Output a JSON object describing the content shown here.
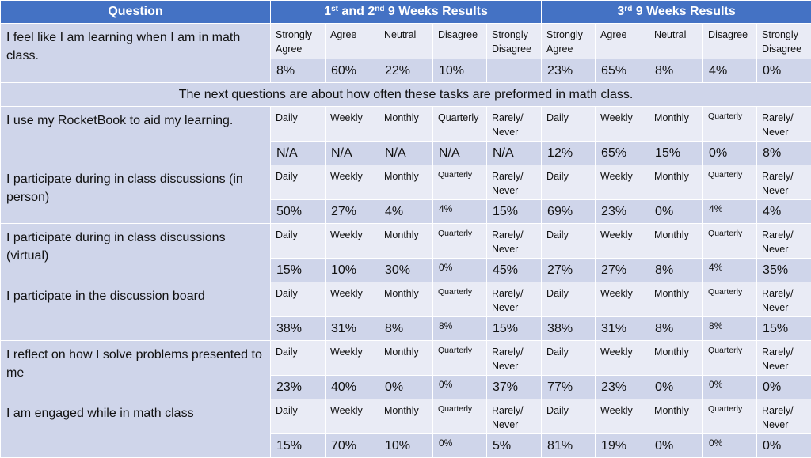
{
  "header": {
    "question": "Question",
    "group1": {
      "part1": "1",
      "sup1": "st",
      "part2": " and 2",
      "sup2": "nd",
      "part3": " 9 Weeks Results"
    },
    "group2": {
      "part1": "3",
      "sup1": "rd",
      "part3": " 9 Weeks Results"
    }
  },
  "first_question": {
    "text": "I feel like I am learning when I am in math class.",
    "labels": [
      "Strongly Agree",
      "Agree",
      "Neutral",
      "Disagree",
      "Strongly Disagree",
      "Strongly Agree",
      "Agree",
      "Neutral",
      "Disagree",
      "Strongly Disagree"
    ],
    "values": [
      "8%",
      "60%",
      "22%",
      "10%",
      "",
      "23%",
      "65%",
      "8%",
      "4%",
      "0%"
    ]
  },
  "section_note": "The next questions are about how often these tasks are preformed in math class.",
  "freq_labels": [
    "Daily",
    "Weekly",
    "Monthly",
    "Quarterly",
    "Rarely/ Never",
    "Daily",
    "Weekly",
    "Monthly",
    "Quarterly",
    "Rarely/ Never"
  ],
  "rows": [
    {
      "question": "I use my RocketBook to aid my learning.",
      "values": [
        "N/A",
        "N/A",
        "N/A",
        "N/A",
        "N/A",
        "12%",
        "65%",
        "15%",
        "0%",
        "8%"
      ]
    },
    {
      "question": "I participate during in class discussions (in person)",
      "values": [
        "50%",
        "27%",
        "4%",
        "4%",
        "15%",
        "69%",
        "23%",
        "0%",
        "4%",
        "4%"
      ]
    },
    {
      "question": "I participate during in class discussions (virtual)",
      "values": [
        "15%",
        "10%",
        "30%",
        "0%",
        "45%",
        "27%",
        "27%",
        "8%",
        "4%",
        "35%"
      ]
    },
    {
      "question": "I participate in the discussion board",
      "values": [
        "38%",
        "31%",
        "8%",
        "8%",
        "15%",
        "38%",
        "31%",
        "8%",
        "8%",
        "15%"
      ]
    },
    {
      "question": "I reflect on how I solve problems presented to me",
      "values": [
        "23%",
        "40%",
        "0%",
        "0%",
        "37%",
        "77%",
        "23%",
        "0%",
        "0%",
        "0%"
      ]
    },
    {
      "question": "I am engaged while in math class",
      "values": [
        "15%",
        "70%",
        "10%",
        "0%",
        "5%",
        "81%",
        "19%",
        "0%",
        "0%",
        "0%"
      ]
    }
  ]
}
